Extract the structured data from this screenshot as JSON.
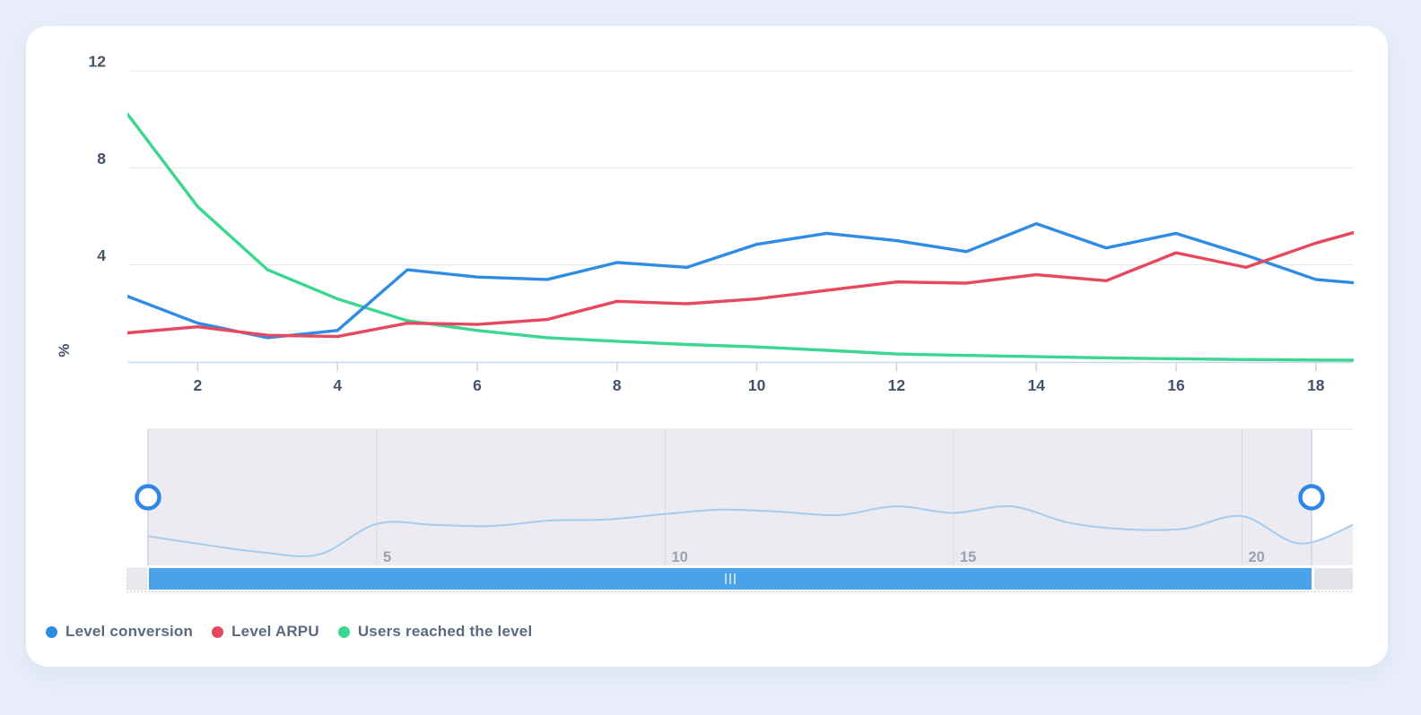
{
  "page": {
    "background_color": "#e9eefa",
    "card_background_color": "#ffffff"
  },
  "chart_data": {
    "type": "line",
    "title": "",
    "xlabel": "",
    "ylabel": "%",
    "grid": "horizontal",
    "legend_position": "bottom-left",
    "x_axis": {
      "ticks": [
        2,
        4,
        6,
        8,
        10,
        12,
        14,
        16,
        18
      ],
      "visible_min": 1,
      "visible_max": 18.55
    },
    "y_axis": {
      "ticks": [
        4,
        8,
        12
      ],
      "min": 0,
      "max": 12.9
    },
    "x": [
      1,
      2,
      3,
      4,
      5,
      6,
      7,
      8,
      9,
      10,
      11,
      12,
      13,
      14,
      15,
      16,
      17,
      18,
      19
    ],
    "series": [
      {
        "name": "Level conversion",
        "color": "#2f8ce2",
        "values": [
          2.7,
          1.6,
          1.0,
          1.3,
          3.8,
          3.5,
          3.4,
          4.1,
          3.9,
          4.85,
          5.3,
          5.0,
          4.55,
          5.7,
          4.7,
          5.3,
          4.4,
          3.4,
          3.15
        ]
      },
      {
        "name": "Level ARPU",
        "color": "#e8485e",
        "values": [
          1.2,
          1.45,
          1.1,
          1.05,
          1.6,
          1.55,
          1.75,
          2.5,
          2.4,
          2.6,
          2.95,
          3.3,
          3.25,
          3.6,
          3.35,
          4.5,
          3.9,
          4.9,
          5.7
        ]
      },
      {
        "name": "Users reached the level",
        "color": "#3bd68f",
        "values": [
          10.2,
          6.4,
          3.8,
          2.6,
          1.7,
          1.3,
          1.0,
          0.85,
          0.72,
          0.62,
          0.48,
          0.33,
          0.27,
          0.22,
          0.17,
          0.13,
          0.1,
          0.08,
          0.07
        ]
      }
    ],
    "navigator": {
      "series_name": "Level conversion",
      "line_color": "#a7cbec",
      "mask_fill": "#ebebf1",
      "outside_area_fill": "#ededf2",
      "handle_border_color": "#2f86e8",
      "x_ticks": [
        5,
        10,
        15,
        20
      ],
      "x": [
        1,
        2,
        3,
        4,
        5,
        6,
        7,
        8,
        9,
        10,
        11,
        12,
        13,
        14,
        15,
        16,
        17,
        18,
        19,
        20,
        21,
        22
      ],
      "values": [
        2.7,
        1.9,
        1.2,
        1.0,
        3.8,
        3.7,
        3.6,
        4.1,
        4.2,
        4.7,
        5.1,
        4.9,
        4.6,
        5.4,
        4.8,
        5.4,
        3.9,
        3.3,
        3.35,
        4.5,
        2.0,
        3.9
      ],
      "selected_range": [
        1,
        21.1
      ]
    },
    "scrollbar": {
      "thumb_color": "#4aa2e9",
      "track_color": "#e3e3ea",
      "grip_icon": "III"
    }
  },
  "legend": {
    "items": [
      {
        "label": "Level conversion",
        "color": "#2f8ce2"
      },
      {
        "label": "Level ARPU",
        "color": "#e8485e"
      },
      {
        "label": "Users reached the level",
        "color": "#3bd68f"
      }
    ]
  }
}
